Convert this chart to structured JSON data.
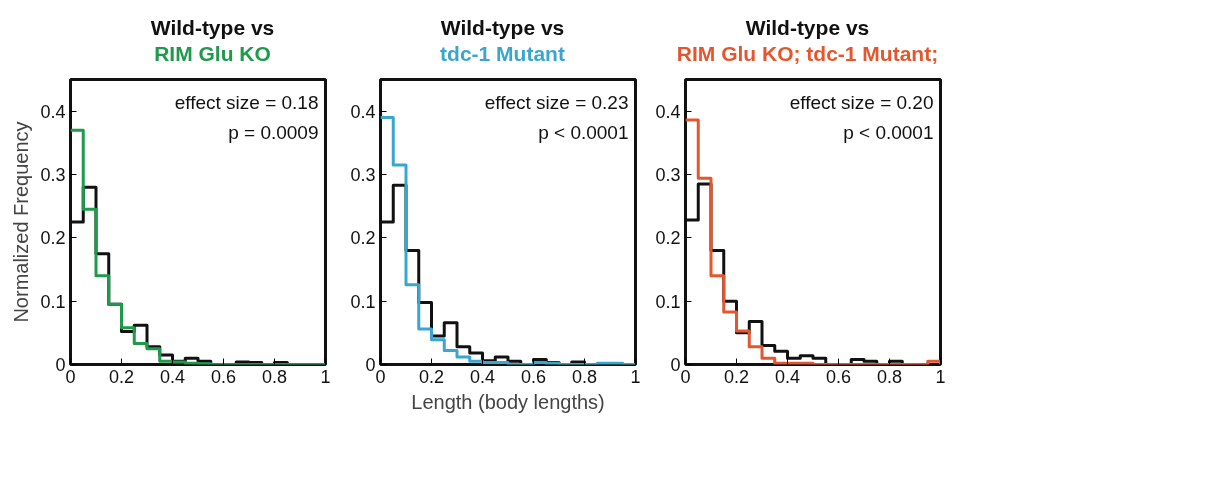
{
  "chart_data": [
    {
      "type": "histogram",
      "title": "Wild-type vs",
      "ylabel": "Normalized Frequency",
      "legend": "top",
      "bins": [
        0,
        0.05,
        0.1,
        0.15,
        0.2,
        0.25,
        0.3,
        0.35,
        0.4,
        0.45,
        0.5,
        0.55,
        0.6,
        0.65,
        0.7,
        0.75,
        0.8,
        0.85,
        0.9,
        0.95,
        1
      ],
      "series": [
        {
          "color": "#111111",
          "values": [
            0.225,
            0.28,
            0.175,
            0.095,
            0.052,
            0.062,
            0.028,
            0.015,
            0.005,
            0.01,
            0.005,
            0,
            0,
            0.004,
            0.003,
            0,
            0.003,
            0,
            0,
            0
          ]
        },
        {
          "name": "RIM Glu KO",
          "color": "#1e9a4a",
          "values": [
            0.37,
            0.245,
            0.14,
            0.095,
            0.058,
            0.033,
            0.025,
            0.005,
            0.004,
            0.002,
            0.001,
            0,
            0,
            0,
            0,
            0,
            0,
            0,
            0,
            0
          ]
        }
      ],
      "xlim": [
        0,
        1
      ],
      "ylim": [
        0,
        0.45
      ],
      "xticks": [
        0,
        0.2,
        0.4,
        0.6,
        0.8,
        1
      ],
      "yticks": [
        0,
        0.1,
        0.2,
        0.3,
        0.4
      ],
      "annotations": [
        "effect size = 0.18",
        "p = 0.0009"
      ]
    },
    {
      "type": "histogram",
      "title": "Wild-type vs",
      "xlabel": "Length (body lengths)",
      "legend": "top",
      "bins": [
        0,
        0.05,
        0.1,
        0.15,
        0.2,
        0.25,
        0.3,
        0.35,
        0.4,
        0.45,
        0.5,
        0.55,
        0.6,
        0.65,
        0.7,
        0.75,
        0.8,
        0.85,
        0.9,
        0.95,
        1
      ],
      "series": [
        {
          "color": "#111111",
          "values": [
            0.225,
            0.283,
            0.18,
            0.098,
            0.045,
            0.066,
            0.028,
            0.018,
            0.006,
            0.012,
            0.005,
            0,
            0.008,
            0.003,
            0,
            0.004,
            0,
            0,
            0,
            0
          ]
        },
        {
          "name": "tdc-1 Mutant",
          "color": "#3aa6d0",
          "values": [
            0.39,
            0.315,
            0.126,
            0.056,
            0.039,
            0.022,
            0.012,
            0.005,
            0.003,
            0.003,
            0,
            0,
            0.003,
            0.002,
            0,
            0,
            0,
            0.002,
            0.002,
            0
          ]
        }
      ],
      "xlim": [
        0,
        1
      ],
      "ylim": [
        0,
        0.45
      ],
      "xticks": [
        0,
        0.2,
        0.4,
        0.6,
        0.8,
        1
      ],
      "yticks": [
        0,
        0.1,
        0.2,
        0.3,
        0.4
      ],
      "annotations": [
        "effect size = 0.23",
        "p < 0.0001"
      ]
    },
    {
      "type": "histogram",
      "title": "Wild-type vs",
      "legend": "top",
      "bins": [
        0,
        0.05,
        0.1,
        0.15,
        0.2,
        0.25,
        0.3,
        0.35,
        0.4,
        0.45,
        0.5,
        0.55,
        0.6,
        0.65,
        0.7,
        0.75,
        0.8,
        0.85,
        0.9,
        0.95,
        1
      ],
      "series": [
        {
          "color": "#111111",
          "values": [
            0.228,
            0.285,
            0.18,
            0.1,
            0.05,
            0.068,
            0.03,
            0.021,
            0.01,
            0.014,
            0.01,
            0,
            0,
            0.008,
            0.005,
            0,
            0.005,
            0,
            0,
            0
          ]
        },
        {
          "name": "RIM Glu KO; tdc-1 Mutant;",
          "color": "#e4572e",
          "values": [
            0.386,
            0.294,
            0.14,
            0.083,
            0.053,
            0.028,
            0.01,
            0.002,
            0.002,
            0.002,
            0,
            0,
            0,
            0,
            0,
            0,
            0,
            0,
            0,
            0.005
          ]
        }
      ],
      "xlim": [
        0,
        1
      ],
      "ylim": [
        0,
        0.45
      ],
      "xticks": [
        0,
        0.2,
        0.4,
        0.6,
        0.8,
        1
      ],
      "yticks": [
        0,
        0.1,
        0.2,
        0.3,
        0.4
      ],
      "annotations": [
        "effect size = 0.20",
        "p < 0.0001"
      ]
    }
  ]
}
